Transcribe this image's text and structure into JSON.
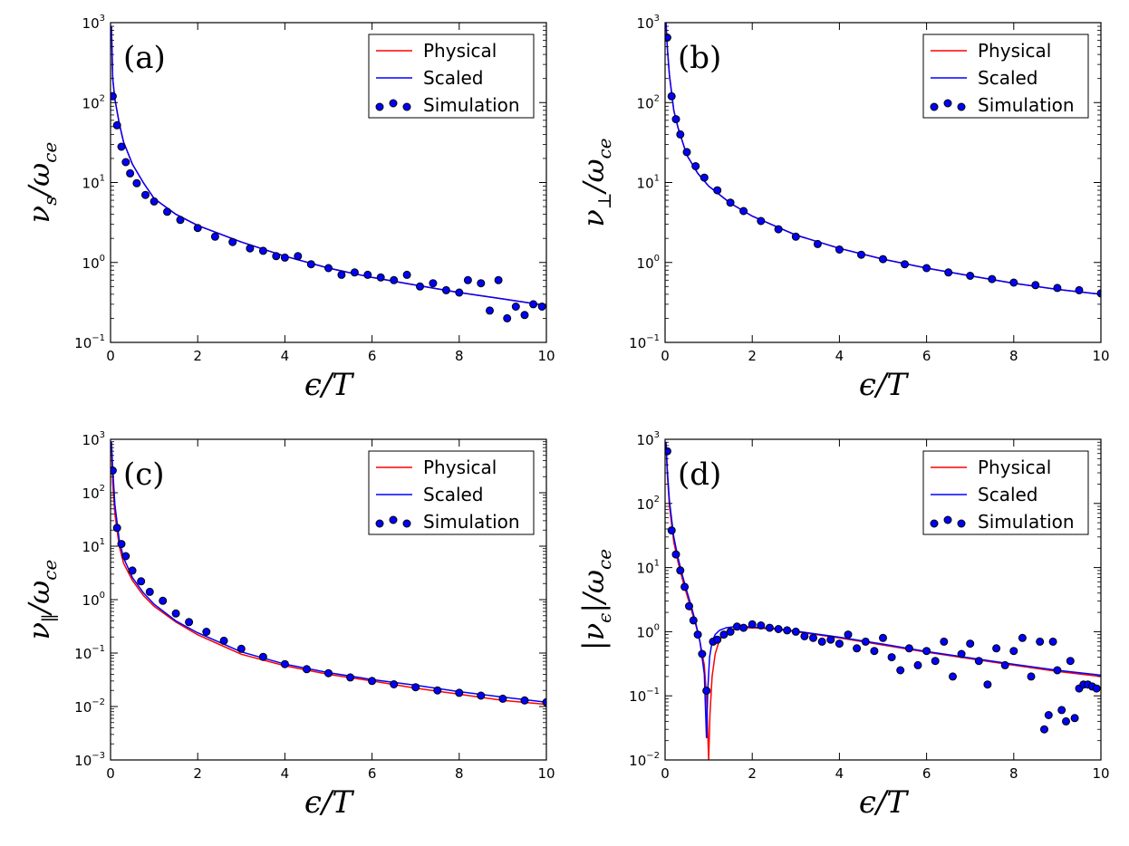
{
  "chart_data": [
    {
      "type": "line",
      "panel": "(a)",
      "xlabel": "ϵ/T",
      "ylabel": "ν_s/ω_ce",
      "ylabel_main": "ν",
      "ylabel_sub": "s",
      "ylabel_rest": "/ω",
      "ylabel_rest_sub": "ce",
      "yscale": "log",
      "xlim": [
        0,
        10
      ],
      "ylim": [
        0.1,
        1000
      ],
      "xticks": [
        "0",
        "2",
        "4",
        "6",
        "8",
        "10"
      ],
      "yticks": [
        {
          "base": "10",
          "exp": "−1"
        },
        {
          "base": "10",
          "exp": "0"
        },
        {
          "base": "10",
          "exp": "1"
        },
        {
          "base": "10",
          "exp": "2"
        },
        {
          "base": "10",
          "exp": "3"
        }
      ],
      "legend": [
        "Physical",
        "Scaled",
        "Simulation"
      ],
      "series": [
        {
          "name": "Physical",
          "color": "#ff0000",
          "x": [
            0.02,
            0.05,
            0.1,
            0.2,
            0.3,
            0.5,
            0.75,
            1,
            1.5,
            2,
            3,
            4,
            5,
            6,
            7,
            8,
            9,
            10
          ],
          "y": [
            900,
            200,
            110,
            55,
            32,
            17,
            10,
            6.3,
            4.0,
            2.9,
            1.8,
            1.2,
            0.85,
            0.65,
            0.52,
            0.42,
            0.35,
            0.29
          ]
        },
        {
          "name": "Scaled",
          "color": "#0000ff",
          "x": [
            0.02,
            0.05,
            0.1,
            0.2,
            0.3,
            0.5,
            0.75,
            1,
            1.5,
            2,
            3,
            4,
            5,
            6,
            7,
            8,
            9,
            10
          ],
          "y": [
            900,
            200,
            110,
            55,
            32,
            17,
            10,
            6.3,
            4.0,
            2.9,
            1.8,
            1.2,
            0.85,
            0.65,
            0.52,
            0.42,
            0.35,
            0.29
          ]
        },
        {
          "name": "Simulation",
          "color": "#0000ff",
          "x": [
            0.05,
            0.15,
            0.25,
            0.35,
            0.45,
            0.6,
            0.8,
            1.0,
            1.3,
            1.6,
            2.0,
            2.4,
            2.8,
            3.2,
            3.5,
            3.8,
            4.0,
            4.3,
            4.6,
            5.0,
            5.3,
            5.6,
            5.9,
            6.2,
            6.5,
            6.8,
            7.1,
            7.4,
            7.7,
            8.0,
            8.2,
            8.5,
            8.7,
            8.9,
            9.1,
            9.3,
            9.5,
            9.7,
            9.9
          ],
          "y": [
            120,
            52,
            28,
            18,
            13,
            9.8,
            7.0,
            5.8,
            4.3,
            3.4,
            2.7,
            2.1,
            1.8,
            1.5,
            1.4,
            1.2,
            1.15,
            1.2,
            0.95,
            0.85,
            0.7,
            0.75,
            0.7,
            0.65,
            0.6,
            0.7,
            0.5,
            0.55,
            0.45,
            0.42,
            0.6,
            0.55,
            0.25,
            0.6,
            0.2,
            0.28,
            0.22,
            0.3,
            0.28
          ]
        }
      ]
    },
    {
      "type": "line",
      "panel": "(b)",
      "xlabel": "ϵ/T",
      "ylabel": "ν_⊥/ω_ce",
      "ylabel_main": "ν",
      "ylabel_sub": "⊥",
      "ylabel_rest": "/ω",
      "ylabel_rest_sub": "ce",
      "yscale": "log",
      "xlim": [
        0,
        10
      ],
      "ylim": [
        0.1,
        1000
      ],
      "xticks": [
        "0",
        "2",
        "4",
        "6",
        "8",
        "10"
      ],
      "yticks": [
        {
          "base": "10",
          "exp": "−1"
        },
        {
          "base": "10",
          "exp": "0"
        },
        {
          "base": "10",
          "exp": "1"
        },
        {
          "base": "10",
          "exp": "2"
        },
        {
          "base": "10",
          "exp": "3"
        }
      ],
      "legend": [
        "Physical",
        "Scaled",
        "Simulation"
      ],
      "series": [
        {
          "name": "Physical",
          "color": "#ff0000",
          "x": [
            0.02,
            0.05,
            0.1,
            0.2,
            0.3,
            0.5,
            0.75,
            1,
            1.5,
            2,
            3,
            4,
            5,
            6,
            7,
            8,
            9,
            10
          ],
          "y": [
            1000,
            500,
            220,
            80,
            48,
            22,
            13,
            9.0,
            5.5,
            3.8,
            2.2,
            1.5,
            1.1,
            0.85,
            0.68,
            0.55,
            0.46,
            0.4
          ]
        },
        {
          "name": "Scaled",
          "color": "#0000ff",
          "x": [
            0.02,
            0.05,
            0.1,
            0.2,
            0.3,
            0.5,
            0.75,
            1,
            1.5,
            2,
            3,
            4,
            5,
            6,
            7,
            8,
            9,
            10
          ],
          "y": [
            1000,
            500,
            220,
            80,
            48,
            22,
            13,
            9.0,
            5.5,
            3.8,
            2.2,
            1.5,
            1.1,
            0.85,
            0.68,
            0.55,
            0.46,
            0.4
          ]
        },
        {
          "name": "Simulation",
          "color": "#0000ff",
          "x": [
            0.05,
            0.15,
            0.25,
            0.35,
            0.5,
            0.7,
            0.9,
            1.2,
            1.5,
            1.8,
            2.2,
            2.6,
            3.0,
            3.5,
            4.0,
            4.5,
            5.0,
            5.5,
            6.0,
            6.5,
            7.0,
            7.5,
            8.0,
            8.5,
            9.0,
            9.5,
            10.0
          ],
          "y": [
            650,
            120,
            62,
            40,
            24,
            16,
            11.5,
            8.0,
            5.6,
            4.4,
            3.3,
            2.6,
            2.1,
            1.7,
            1.45,
            1.25,
            1.1,
            0.95,
            0.85,
            0.75,
            0.68,
            0.62,
            0.56,
            0.52,
            0.48,
            0.45,
            0.41
          ]
        }
      ]
    },
    {
      "type": "line",
      "panel": "(c)",
      "xlabel": "ϵ/T",
      "ylabel": "ν_∥/ω_ce",
      "ylabel_main": "ν",
      "ylabel_sub": "∥",
      "ylabel_rest": "/ω",
      "ylabel_rest_sub": "ce",
      "yscale": "log",
      "xlim": [
        0,
        10
      ],
      "ylim": [
        0.001,
        1000
      ],
      "xticks": [
        "0",
        "2",
        "4",
        "6",
        "8",
        "10"
      ],
      "yticks": [
        {
          "base": "10",
          "exp": "−3"
        },
        {
          "base": "10",
          "exp": "−2"
        },
        {
          "base": "10",
          "exp": "−1"
        },
        {
          "base": "10",
          "exp": "0"
        },
        {
          "base": "10",
          "exp": "1"
        },
        {
          "base": "10",
          "exp": "2"
        },
        {
          "base": "10",
          "exp": "3"
        }
      ],
      "legend": [
        "Physical",
        "Scaled",
        "Simulation"
      ],
      "series": [
        {
          "name": "Physical",
          "color": "#ff0000",
          "x": [
            0.02,
            0.05,
            0.1,
            0.2,
            0.3,
            0.5,
            0.75,
            1,
            1.5,
            2,
            3,
            4,
            5,
            6,
            7,
            8,
            9,
            10
          ],
          "y": [
            800,
            150,
            40,
            10,
            4.8,
            2.3,
            1.2,
            0.75,
            0.38,
            0.22,
            0.095,
            0.058,
            0.04,
            0.03,
            0.022,
            0.017,
            0.013,
            0.011
          ]
        },
        {
          "name": "Scaled",
          "color": "#0000ff",
          "x": [
            0.02,
            0.05,
            0.1,
            0.2,
            0.3,
            0.5,
            0.75,
            1,
            1.5,
            2,
            3,
            4,
            5,
            6,
            7,
            8,
            9,
            10
          ],
          "y": [
            900,
            280,
            60,
            13,
            6.0,
            2.6,
            1.35,
            0.82,
            0.4,
            0.24,
            0.105,
            0.062,
            0.043,
            0.032,
            0.025,
            0.019,
            0.015,
            0.012
          ]
        },
        {
          "name": "Simulation",
          "color": "#0000ff",
          "x": [
            0.05,
            0.15,
            0.25,
            0.35,
            0.5,
            0.7,
            0.9,
            1.2,
            1.5,
            1.8,
            2.2,
            2.6,
            3.0,
            3.5,
            4.0,
            4.5,
            5.0,
            5.5,
            6.0,
            6.5,
            7.0,
            7.5,
            8.0,
            8.5,
            9.0,
            9.5,
            10.0
          ],
          "y": [
            260,
            22,
            11,
            6.5,
            3.5,
            2.2,
            1.4,
            0.95,
            0.55,
            0.38,
            0.25,
            0.17,
            0.12,
            0.085,
            0.062,
            0.05,
            0.042,
            0.035,
            0.03,
            0.026,
            0.023,
            0.02,
            0.018,
            0.016,
            0.014,
            0.013,
            0.012
          ]
        }
      ]
    },
    {
      "type": "line",
      "panel": "(d)",
      "xlabel": "ϵ/T",
      "ylabel": "|ν_ϵ|/ω_ce",
      "ylabel_main": "|ν",
      "ylabel_sub": "ϵ",
      "ylabel_rest": "|/ω",
      "ylabel_rest_sub": "ce",
      "yscale": "log",
      "xlim": [
        0,
        10
      ],
      "ylim": [
        0.01,
        1000
      ],
      "xticks": [
        "0",
        "2",
        "4",
        "6",
        "8",
        "10"
      ],
      "yticks": [
        {
          "base": "10",
          "exp": "−2"
        },
        {
          "base": "10",
          "exp": "−1"
        },
        {
          "base": "10",
          "exp": "0"
        },
        {
          "base": "10",
          "exp": "1"
        },
        {
          "base": "10",
          "exp": "2"
        },
        {
          "base": "10",
          "exp": "3"
        }
      ],
      "legend": [
        "Physical",
        "Scaled",
        "Simulation"
      ],
      "series": [
        {
          "name": "Physical",
          "color": "#ff0000",
          "x": [
            0.02,
            0.05,
            0.1,
            0.2,
            0.3,
            0.4,
            0.5,
            0.6,
            0.7,
            0.8,
            0.9,
            0.95,
            1.0,
            1.03,
            1.08,
            1.15,
            1.25,
            1.4,
            1.6,
            1.8,
            2.0,
            2.5,
            3.0,
            4,
            5,
            6,
            7,
            8,
            9,
            10
          ],
          "y": [
            900,
            300,
            90,
            25,
            12,
            6.5,
            3.8,
            2.2,
            1.3,
            0.7,
            0.3,
            0.1,
            0.01,
            0.05,
            0.2,
            0.45,
            0.75,
            0.95,
            1.1,
            1.15,
            1.15,
            1.1,
            1.0,
            0.8,
            0.62,
            0.48,
            0.38,
            0.3,
            0.24,
            0.2
          ]
        },
        {
          "name": "Scaled",
          "color": "#0000ff",
          "x": [
            0.02,
            0.05,
            0.1,
            0.2,
            0.3,
            0.4,
            0.5,
            0.6,
            0.7,
            0.8,
            0.9,
            0.95,
            0.98,
            1.02,
            1.08,
            1.15,
            1.25,
            1.4,
            1.6,
            1.8,
            2.0,
            2.5,
            3.0,
            4,
            5,
            6,
            7,
            8,
            9,
            10
          ],
          "y": [
            900,
            350,
            110,
            30,
            14,
            7.5,
            4.3,
            2.5,
            1.4,
            0.7,
            0.22,
            0.022,
            0.12,
            0.4,
            0.7,
            0.9,
            1.05,
            1.15,
            1.2,
            1.2,
            1.18,
            1.12,
            1.02,
            0.82,
            0.64,
            0.49,
            0.39,
            0.31,
            0.25,
            0.21
          ]
        },
        {
          "name": "Simulation",
          "color": "#0000ff",
          "x": [
            0.05,
            0.15,
            0.25,
            0.35,
            0.45,
            0.55,
            0.65,
            0.75,
            0.85,
            0.95,
            1.1,
            1.2,
            1.35,
            1.5,
            1.65,
            1.8,
            2.0,
            2.2,
            2.4,
            2.6,
            2.8,
            3.0,
            3.2,
            3.4,
            3.6,
            3.8,
            4.0,
            4.2,
            4.4,
            4.6,
            4.8,
            5.0,
            5.2,
            5.4,
            5.6,
            5.8,
            6.0,
            6.2,
            6.4,
            6.6,
            6.8,
            7.0,
            7.2,
            7.4,
            7.6,
            7.8,
            8.0,
            8.2,
            8.4,
            8.6,
            8.7,
            8.8,
            8.9,
            9.0,
            9.1,
            9.2,
            9.3,
            9.4,
            9.5,
            9.6,
            9.7,
            9.8,
            9.9
          ],
          "y": [
            650,
            38,
            16,
            9.0,
            5.0,
            2.5,
            1.5,
            0.9,
            0.45,
            0.12,
            0.7,
            0.75,
            0.9,
            1.0,
            1.2,
            1.15,
            1.3,
            1.25,
            1.15,
            1.1,
            1.05,
            1.0,
            0.85,
            0.8,
            0.7,
            0.75,
            0.65,
            0.9,
            0.55,
            0.7,
            0.5,
            0.8,
            0.4,
            0.25,
            0.55,
            0.3,
            0.5,
            0.35,
            0.7,
            0.2,
            0.45,
            0.65,
            0.35,
            0.15,
            0.55,
            0.3,
            0.5,
            0.8,
            0.2,
            0.7,
            0.03,
            0.05,
            0.7,
            0.25,
            0.06,
            0.04,
            0.35,
            0.045,
            0.13,
            0.15,
            0.15,
            0.14,
            0.13
          ]
        }
      ]
    }
  ]
}
